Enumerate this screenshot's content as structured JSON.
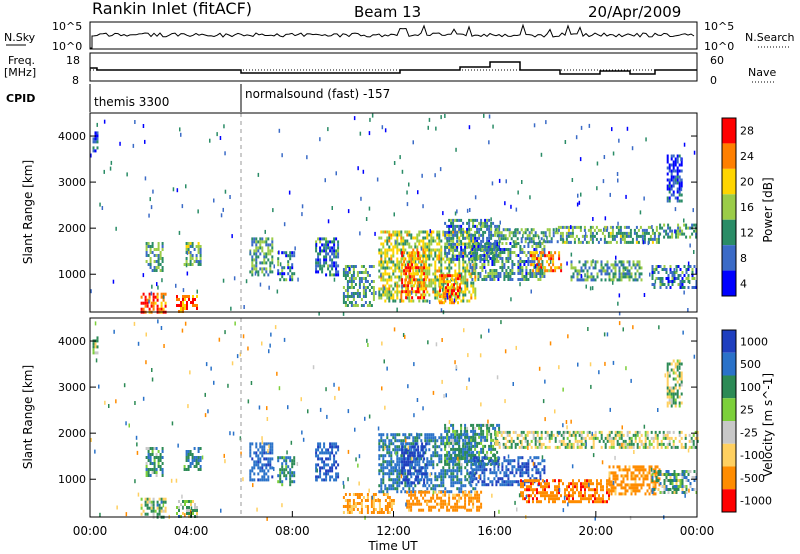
{
  "header": {
    "station": "Rankin Inlet (fitACF)",
    "beam": "Beam 13",
    "date": "20/Apr/2009"
  },
  "summary": {
    "nsky_label": "N.Sky",
    "nsky_ticks": [
      "10^5",
      "10^0"
    ],
    "nsearch_label": "N.Search",
    "nsearch_ticks": [
      "10^5",
      "10^0"
    ],
    "freq_label_1": "Freq.",
    "freq_label_2": "[MHz]",
    "freq_ticks": [
      "18",
      "8"
    ],
    "nave_label": "Nave",
    "nave_ticks": [
      "60",
      "0"
    ],
    "cpid_label": "CPID",
    "cpid_segments": [
      {
        "label": "themis 3300",
        "start_hour": 0
      },
      {
        "label": "normalsound (fast) -157",
        "start_hour": 6
      }
    ]
  },
  "chart_data": [
    {
      "type": "heatmap",
      "name": "power",
      "ylabel": "Slant Range [km]",
      "xlabel": "",
      "x_range_hours": [
        0,
        24
      ],
      "ylim": [
        180,
        4500
      ],
      "y_ticks": [
        1000,
        2000,
        3000,
        4000
      ],
      "colorbar_label": "Power [dB]",
      "colorbar_ticks": [
        "28",
        "24",
        "20",
        "16",
        "12",
        "8",
        "4"
      ],
      "colorbar_colors": [
        "#ff0000",
        "#ff7f00",
        "#ffd500",
        "#9bcc48",
        "#2a8c66",
        "#3b6bc7",
        "#0000ff"
      ],
      "regions": [
        {
          "t0": 2.0,
          "t1": 3.0,
          "r0": 200,
          "r1": 600,
          "dB": 26
        },
        {
          "t0": 3.4,
          "t1": 4.2,
          "r0": 200,
          "r1": 550,
          "dB": 24
        },
        {
          "t0": 3.7,
          "t1": 4.4,
          "r0": 1200,
          "r1": 1700,
          "dB": 13
        },
        {
          "t0": 2.2,
          "t1": 2.9,
          "r0": 1100,
          "r1": 1700,
          "dB": 12
        },
        {
          "t0": 6.3,
          "t1": 7.2,
          "r0": 1000,
          "r1": 1800,
          "dB": 12
        },
        {
          "t0": 7.4,
          "t1": 8.1,
          "r0": 900,
          "r1": 1500,
          "dB": 10
        },
        {
          "t0": 8.9,
          "t1": 9.8,
          "r0": 1000,
          "r1": 1800,
          "dB": 9
        },
        {
          "t0": 10.0,
          "t1": 11.2,
          "r0": 300,
          "r1": 1200,
          "dB": 12
        },
        {
          "t0": 11.4,
          "t1": 15.2,
          "r0": 400,
          "r1": 1950,
          "dB": 17
        },
        {
          "t0": 12.3,
          "t1": 13.3,
          "r0": 500,
          "r1": 1500,
          "dB": 23
        },
        {
          "t0": 13.8,
          "t1": 14.6,
          "r0": 400,
          "r1": 1000,
          "dB": 24
        },
        {
          "t0": 14.0,
          "t1": 16.2,
          "r0": 1300,
          "r1": 2200,
          "dB": 11
        },
        {
          "t0": 15.0,
          "t1": 18.0,
          "r0": 900,
          "r1": 1700,
          "dB": 11
        },
        {
          "t0": 16.0,
          "t1": 18.5,
          "r0": 1700,
          "r1": 2000,
          "dB": 12
        },
        {
          "t0": 17.4,
          "t1": 18.6,
          "r0": 1100,
          "r1": 1500,
          "dB": 23
        },
        {
          "t0": 18.5,
          "t1": 22.5,
          "r0": 1700,
          "r1": 2050,
          "dB": 13
        },
        {
          "t0": 19.0,
          "t1": 21.8,
          "r0": 900,
          "r1": 1300,
          "dB": 12
        },
        {
          "t0": 22.2,
          "t1": 24.0,
          "r0": 700,
          "r1": 1200,
          "dB": 10
        },
        {
          "t0": 22.5,
          "t1": 24.0,
          "r0": 1800,
          "r1": 2100,
          "dB": 12
        },
        {
          "t0": 22.8,
          "t1": 23.4,
          "r0": 2600,
          "r1": 3600,
          "dB": 6
        },
        {
          "t0": 0.1,
          "t1": 0.3,
          "r0": 3700,
          "r1": 4100,
          "dB": 5
        }
      ]
    },
    {
      "type": "heatmap",
      "name": "velocity",
      "ylabel": "Slant Range [km]",
      "xlabel": "Time UT",
      "x_ticks": [
        "00:00",
        "04:00",
        "08:00",
        "12:00",
        "16:00",
        "20:00",
        "00:00"
      ],
      "x_range_hours": [
        0,
        24
      ],
      "ylim": [
        180,
        4500
      ],
      "y_ticks": [
        1000,
        2000,
        3000,
        4000
      ],
      "colorbar_label": "Velocity [m s^-1]",
      "colorbar_ticks": [
        "1000",
        "500",
        "100",
        "25",
        "-25",
        "-100",
        "-500",
        "-1000"
      ],
      "colorbar_colors": [
        "#1f3fbf",
        "#2a72c9",
        "#2c8a55",
        "#7ccf3a",
        "#c8c8c8",
        "#ffd060",
        "#ff8c00",
        "#ff0000"
      ],
      "regions": [
        {
          "t0": 2.0,
          "t1": 3.0,
          "r0": 200,
          "r1": 600,
          "v": 80
        },
        {
          "t0": 3.4,
          "t1": 4.2,
          "r0": 200,
          "r1": 550,
          "v": 60
        },
        {
          "t0": 3.7,
          "t1": 4.4,
          "r0": 1200,
          "r1": 1700,
          "v": 300
        },
        {
          "t0": 2.2,
          "t1": 2.9,
          "r0": 1100,
          "r1": 1700,
          "v": 200
        },
        {
          "t0": 6.3,
          "t1": 7.2,
          "r0": 1000,
          "r1": 1800,
          "v": 600
        },
        {
          "t0": 7.4,
          "t1": 8.1,
          "r0": 900,
          "r1": 1500,
          "v": 250
        },
        {
          "t0": 8.9,
          "t1": 9.8,
          "r0": 1000,
          "r1": 1800,
          "v": 700
        },
        {
          "t0": 10.0,
          "t1": 12.0,
          "r0": 300,
          "r1": 700,
          "v": -400
        },
        {
          "t0": 11.4,
          "t1": 15.2,
          "r0": 700,
          "r1": 2000,
          "v": 400
        },
        {
          "t0": 12.3,
          "t1": 13.3,
          "r0": 900,
          "r1": 1800,
          "v": 900
        },
        {
          "t0": 12.5,
          "t1": 15.5,
          "r0": 300,
          "r1": 750,
          "v": -500
        },
        {
          "t0": 14.0,
          "t1": 16.2,
          "r0": 1300,
          "r1": 2200,
          "v": 200
        },
        {
          "t0": 15.0,
          "t1": 18.0,
          "r0": 900,
          "r1": 1500,
          "v": 700
        },
        {
          "t0": 16.0,
          "t1": 24.0,
          "r0": 1700,
          "r1": 2050,
          "v": 0
        },
        {
          "t0": 17.0,
          "t1": 20.5,
          "r0": 500,
          "r1": 1000,
          "v": -600
        },
        {
          "t0": 20.5,
          "t1": 22.5,
          "r0": 700,
          "r1": 1300,
          "v": -500
        },
        {
          "t0": 22.2,
          "t1": 24.0,
          "r0": 700,
          "r1": 1200,
          "v": 150
        },
        {
          "t0": 22.8,
          "t1": 23.4,
          "r0": 2600,
          "r1": 3600,
          "v": 0
        },
        {
          "t0": 0.1,
          "t1": 0.3,
          "r0": 3700,
          "r1": 4100,
          "v": 0
        }
      ]
    }
  ]
}
